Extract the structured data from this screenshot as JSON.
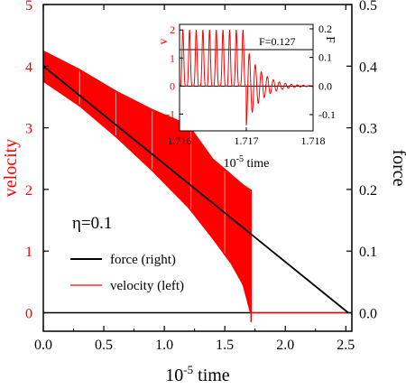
{
  "chart_data": [
    {
      "type": "line",
      "colors": {
        "force": "#000000",
        "velocity": "#ff0000",
        "zero_line": "#000000"
      },
      "xlabel": {
        "base": "10",
        "exponent": "-5",
        "word": " time"
      },
      "ylabel_left": "velocity",
      "ylabel_right": "force",
      "xlim": [
        0.0,
        2.55
      ],
      "ylim_left": [
        -0.3,
        5
      ],
      "ylim_right": [
        -0.03,
        0.5
      ],
      "x_ticks": [
        "0.0",
        "0.5",
        "1.0",
        "1.5",
        "2.0",
        "2.5"
      ],
      "x_tick_values": [
        0.0,
        0.5,
        1.0,
        1.5,
        2.0,
        2.5
      ],
      "y_ticks_left": [
        "0",
        "1",
        "2",
        "3",
        "4",
        "5"
      ],
      "y_tick_values_left": [
        0,
        1,
        2,
        3,
        4,
        5
      ],
      "y_ticks_right": [
        "0.0",
        "0.1",
        "0.2",
        "0.3",
        "0.4",
        "0.5"
      ],
      "y_tick_values_right": [
        0.0,
        0.1,
        0.2,
        0.3,
        0.4,
        0.5
      ],
      "annotation_eta": "η=0.1",
      "series": [
        {
          "name": "force (right)",
          "axis": "right",
          "x": [
            0.0,
            2.52
          ],
          "y": [
            0.4,
            0.0
          ]
        },
        {
          "name": "velocity (left)",
          "axis": "left",
          "band_x": [
            0.0,
            0.3,
            0.6,
            0.9,
            1.2,
            1.4,
            1.55,
            1.65,
            1.71
          ],
          "band_upper": [
            4.25,
            3.95,
            3.6,
            3.3,
            3.05,
            2.5,
            2.25,
            2.08,
            2.0
          ],
          "band_lower": [
            3.75,
            3.35,
            2.85,
            2.3,
            1.7,
            1.2,
            0.8,
            0.45,
            0.0
          ],
          "drop_x": 1.717,
          "after_drop_value": 0
        }
      ]
    },
    {
      "type": "line",
      "inset": true,
      "ylabel_left": "v",
      "ylabel_right": "F",
      "xlabel": {
        "base": "10",
        "exponent": "-5",
        "word": " time"
      },
      "xlim": [
        1.716,
        1.718
      ],
      "ylim_left": [
        -1.6,
        2.2
      ],
      "x_ticks": [
        "1.716",
        "1.717",
        "1.718"
      ],
      "x_tick_values": [
        1.716,
        1.717,
        1.718
      ],
      "y_ticks_left": [
        "2",
        "1",
        "0",
        "-1"
      ],
      "y_tick_values_left": [
        2,
        1,
        0,
        -1
      ],
      "y_ticks_right": [
        "0.2",
        "0.1",
        "0.0",
        "-0.1"
      ],
      "y_tick_values_right": [
        0.2,
        0.1,
        0.0,
        -0.1
      ],
      "annotation": "F=0.127",
      "series": [
        {
          "name": "v",
          "type": "damped_oscillation",
          "x_start": 1.716,
          "period": 0.0001,
          "amplitude": 2.0,
          "drop_x": 1.717,
          "min_after_drop": -1.4,
          "decay_length": 0.00022
        },
        {
          "name": "F",
          "x": [
            1.716,
            1.718
          ],
          "y": [
            1.3,
            1.3
          ]
        }
      ]
    }
  ]
}
